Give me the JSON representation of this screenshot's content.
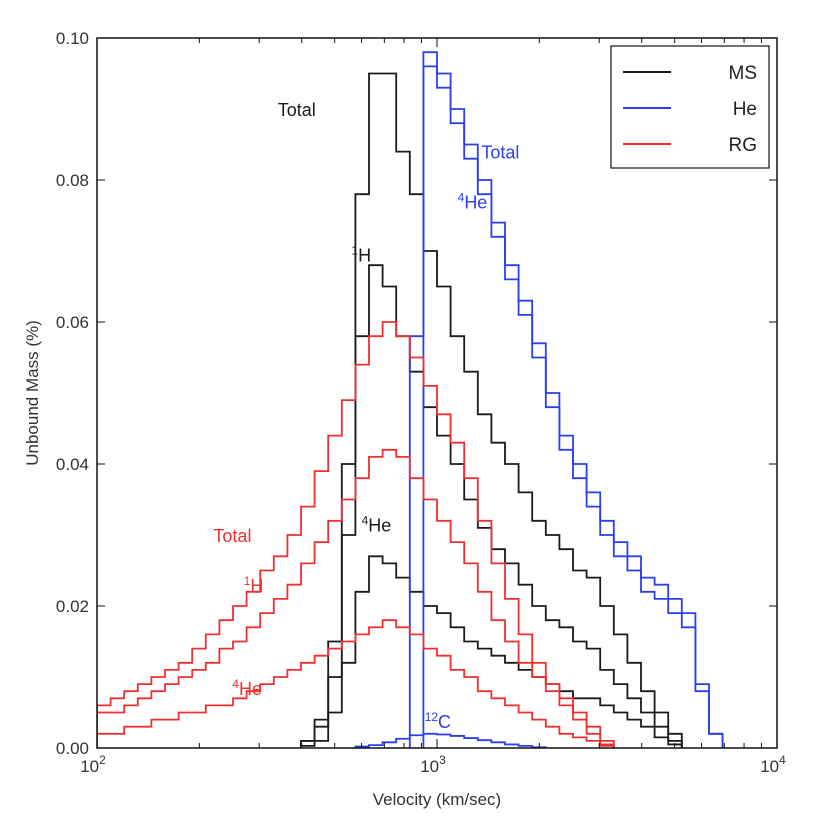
{
  "chart_data": {
    "type": "line",
    "title": "",
    "xlabel": "Velocity (km/sec)",
    "ylabel": "Unbound Mass (%)",
    "xscale": "log",
    "xlim": [
      100,
      10000
    ],
    "ylim": [
      0.0,
      0.1
    ],
    "x_ticks": [
      {
        "value": 100,
        "base": "10",
        "exp": "2"
      },
      {
        "value": 1000,
        "base": "10",
        "exp": "3"
      },
      {
        "value": 10000,
        "base": "10",
        "exp": "4"
      }
    ],
    "y_ticks": [
      {
        "value": 0.0,
        "label": "0.00"
      },
      {
        "value": 0.02,
        "label": "0.02"
      },
      {
        "value": 0.04,
        "label": "0.04"
      },
      {
        "value": 0.06,
        "label": "0.06"
      },
      {
        "value": 0.08,
        "label": "0.08"
      },
      {
        "value": 0.1,
        "label": "0.10"
      }
    ],
    "grid": false,
    "legend_position": "top-right",
    "legend": [
      {
        "label": "MS",
        "color": "#1a1a1a"
      },
      {
        "label": "He",
        "color": "#2b3ff0"
      },
      {
        "label": "RG",
        "color": "#f03030"
      }
    ],
    "series": [
      {
        "group": "MS",
        "component": "Total",
        "color": "#1a1a1a",
        "bin_start": 2.6,
        "bin_width": 0.04,
        "values": [
          0.001,
          0.004,
          0.015,
          0.04,
          0.078,
          0.095,
          0.095,
          0.084,
          0.078,
          0.07,
          0.065,
          0.058,
          0.053,
          0.047,
          0.043,
          0.04,
          0.036,
          0.032,
          0.03,
          0.028,
          0.025,
          0.024,
          0.02,
          0.016,
          0.012,
          0.008,
          0.005,
          0.002
        ]
      },
      {
        "group": "MS",
        "component": "1H",
        "color": "#1a1a1a",
        "bin_start": 2.6,
        "bin_width": 0.04,
        "values": [
          0.001,
          0.003,
          0.01,
          0.03,
          0.058,
          0.068,
          0.065,
          0.058,
          0.053,
          0.048,
          0.044,
          0.04,
          0.035,
          0.031,
          0.028,
          0.026,
          0.023,
          0.02,
          0.018,
          0.017,
          0.015,
          0.014,
          0.011,
          0.009,
          0.007,
          0.005,
          0.003,
          0.001
        ]
      },
      {
        "group": "MS",
        "component": "4He",
        "color": "#1a1a1a",
        "bin_start": 2.6,
        "bin_width": 0.04,
        "values": [
          0.0003,
          0.001,
          0.005,
          0.012,
          0.022,
          0.027,
          0.026,
          0.024,
          0.022,
          0.02,
          0.019,
          0.017,
          0.015,
          0.014,
          0.013,
          0.012,
          0.011,
          0.01,
          0.009,
          0.008,
          0.007,
          0.007,
          0.006,
          0.005,
          0.004,
          0.003,
          0.0015,
          0.0005
        ]
      },
      {
        "group": "He",
        "component": "Total",
        "color": "#2b3ff0",
        "bin_start": 2.92,
        "bin_width": 0.04,
        "values": [
          0.058,
          0.098,
          0.095,
          0.09,
          0.085,
          0.08,
          0.074,
          0.068,
          0.063,
          0.057,
          0.05,
          0.044,
          0.04,
          0.036,
          0.032,
          0.029,
          0.027,
          0.024,
          0.023,
          0.021,
          0.019,
          0.009,
          0.002
        ]
      },
      {
        "group": "He",
        "component": "4He",
        "color": "#2b3ff0",
        "bin_start": 2.96,
        "bin_width": 0.04,
        "values": [
          0.096,
          0.093,
          0.088,
          0.083,
          0.078,
          0.072,
          0.066,
          0.061,
          0.055,
          0.048,
          0.042,
          0.038,
          0.034,
          0.03,
          0.027,
          0.025,
          0.022,
          0.021,
          0.019,
          0.017,
          0.008,
          0.002
        ]
      },
      {
        "group": "He",
        "component": "12C",
        "color": "#2b3ff0",
        "bin_start": 2.76,
        "bin_width": 0.04,
        "values": [
          0.0002,
          0.0004,
          0.0008,
          0.0013,
          0.0018,
          0.002,
          0.0019,
          0.0017,
          0.0014,
          0.0011,
          0.0008,
          0.0005,
          0.0003,
          0.0001
        ]
      },
      {
        "group": "RG",
        "component": "Total",
        "color": "#f03030",
        "bin_start": 2.0,
        "bin_width": 0.04,
        "values": [
          0.006,
          0.007,
          0.008,
          0.009,
          0.01,
          0.011,
          0.012,
          0.014,
          0.016,
          0.018,
          0.02,
          0.022,
          0.025,
          0.027,
          0.03,
          0.034,
          0.039,
          0.044,
          0.049,
          0.054,
          0.058,
          0.06,
          0.058,
          0.055,
          0.051,
          0.047,
          0.043,
          0.038,
          0.032,
          0.026,
          0.021,
          0.016,
          0.012,
          0.009,
          0.007,
          0.005,
          0.003,
          0.001
        ]
      },
      {
        "group": "RG",
        "component": "1H",
        "color": "#f03030",
        "bin_start": 2.0,
        "bin_width": 0.04,
        "values": [
          0.005,
          0.005,
          0.006,
          0.007,
          0.008,
          0.009,
          0.01,
          0.011,
          0.012,
          0.014,
          0.015,
          0.017,
          0.019,
          0.021,
          0.023,
          0.026,
          0.029,
          0.032,
          0.035,
          0.038,
          0.041,
          0.042,
          0.041,
          0.038,
          0.035,
          0.032,
          0.029,
          0.026,
          0.022,
          0.018,
          0.015,
          0.012,
          0.01,
          0.008,
          0.006,
          0.004,
          0.002,
          0.0005
        ]
      },
      {
        "group": "RG",
        "component": "4He",
        "color": "#f03030",
        "bin_start": 2.0,
        "bin_width": 0.04,
        "values": [
          0.002,
          0.002,
          0.003,
          0.003,
          0.004,
          0.004,
          0.005,
          0.005,
          0.006,
          0.006,
          0.007,
          0.008,
          0.009,
          0.01,
          0.011,
          0.012,
          0.013,
          0.014,
          0.015,
          0.016,
          0.017,
          0.018,
          0.017,
          0.016,
          0.014,
          0.013,
          0.011,
          0.01,
          0.008,
          0.007,
          0.006,
          0.005,
          0.004,
          0.003,
          0.002,
          0.0015,
          0.001,
          0.0003
        ]
      }
    ],
    "annotations": [
      {
        "text": "Total",
        "sup": "",
        "color": "#1a1a1a",
        "x": 340,
        "y": 0.089
      },
      {
        "text": "H",
        "sup": "1",
        "color": "#1a1a1a",
        "x": 560,
        "y": 0.0685
      },
      {
        "text": "He",
        "sup": "4",
        "color": "#1a1a1a",
        "x": 600,
        "y": 0.0305
      },
      {
        "text": "Total",
        "sup": "",
        "color": "#2b3ff0",
        "x": 1350,
        "y": 0.083
      },
      {
        "text": "He",
        "sup": "4",
        "color": "#2b3ff0",
        "x": 1150,
        "y": 0.076
      },
      {
        "text": "C",
        "sup": "12",
        "color": "#2b3ff0",
        "x": 920,
        "y": 0.0028
      },
      {
        "text": "Total",
        "sup": "",
        "color": "#f03030",
        "x": 220,
        "y": 0.029
      },
      {
        "text": "H",
        "sup": "1",
        "color": "#f03030",
        "x": 270,
        "y": 0.022
      },
      {
        "text": "He",
        "sup": "4",
        "color": "#f03030",
        "x": 250,
        "y": 0.0075
      }
    ]
  }
}
